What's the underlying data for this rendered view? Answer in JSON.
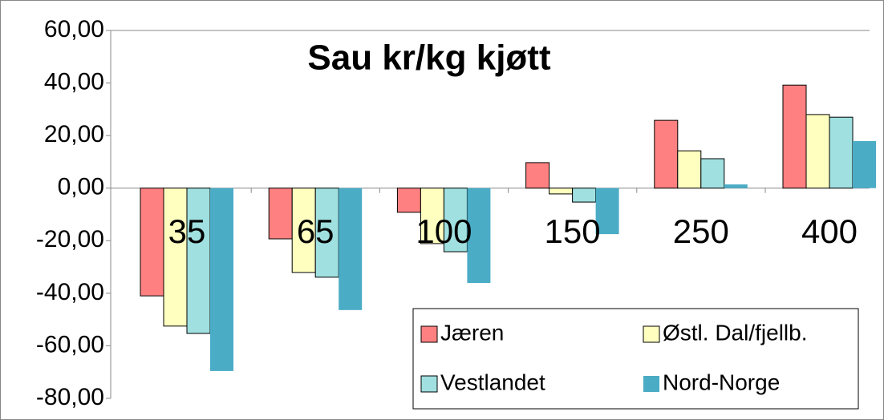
{
  "chart_data": {
    "type": "bar",
    "title": "Sau kr/kg kjøtt",
    "categories": [
      "35",
      "65",
      "100",
      "150",
      "250",
      "400"
    ],
    "series": [
      {
        "name": "Jæren",
        "color": "#ff8080",
        "values": [
          -41,
          -19.3,
          -9.2,
          9.7,
          25.8,
          39.2
        ]
      },
      {
        "name": "Østl. Dal/fjellb.",
        "color": "#ffffc0",
        "values": [
          -52.5,
          -32.1,
          -21.1,
          -2.2,
          14.2,
          28
        ]
      },
      {
        "name": "Vestlandet",
        "color": "#a0e0e0",
        "values": [
          -55.3,
          -33.9,
          -24.2,
          -5.3,
          11.2,
          27
        ]
      },
      {
        "name": "Nord-Norge",
        "color": "#4bacc6",
        "values": [
          -69.6,
          -46.4,
          -36.1,
          -17.5,
          1.4,
          17.9
        ]
      }
    ],
    "ylim": [
      -80,
      60
    ],
    "yticks": [
      {
        "value": -80,
        "label": "-80,00"
      },
      {
        "value": -60,
        "label": "-60,00"
      },
      {
        "value": -40,
        "label": "-40,00"
      },
      {
        "value": -20,
        "label": "-20,00"
      },
      {
        "value": 0,
        "label": "0,00"
      },
      {
        "value": 20,
        "label": "20,00"
      },
      {
        "value": 40,
        "label": "40,00"
      },
      {
        "value": 60,
        "label": "60,00"
      }
    ],
    "legend": "bottom-right"
  }
}
